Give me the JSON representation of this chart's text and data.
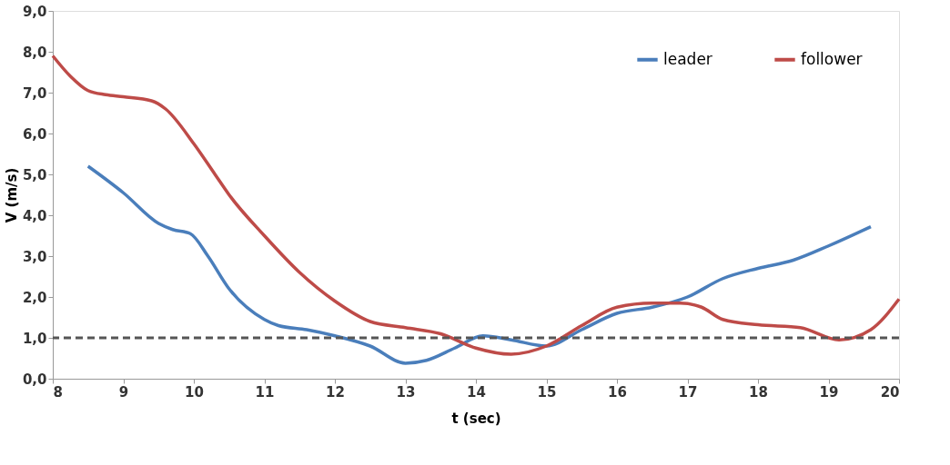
{
  "chart_data": {
    "type": "line",
    "xlabel": "t (sec)",
    "ylabel": "V (m/s)",
    "xlim": [
      8,
      20
    ],
    "xticks": [
      8,
      9,
      10,
      11,
      12,
      13,
      14,
      15,
      16,
      17,
      18,
      19,
      20
    ],
    "ylim": [
      0,
      9
    ],
    "yticks": [
      {
        "value": 0,
        "label": "0,0"
      },
      {
        "value": 1,
        "label": "1,0"
      },
      {
        "value": 2,
        "label": "2,0"
      },
      {
        "value": 3,
        "label": "3,0"
      },
      {
        "value": 4,
        "label": "4,0"
      },
      {
        "value": 5,
        "label": "5,0"
      },
      {
        "value": 6,
        "label": "6,0"
      },
      {
        "value": 7,
        "label": "7,0"
      },
      {
        "value": 8,
        "label": "8,0"
      },
      {
        "value": 9,
        "label": "9,0"
      }
    ],
    "grid": false,
    "legend": "top right",
    "line_style": "solid",
    "marker": "none",
    "series": [
      {
        "name": "leader",
        "color": "#4a7ebb",
        "x": [
          8.5,
          9,
          9.5,
          9.7,
          9.95,
          10.2,
          10.5,
          11,
          11.2,
          11.6,
          12,
          12.5,
          13,
          13.3,
          13.7,
          14.1,
          14.5,
          15,
          15.5,
          16,
          16.5,
          17,
          17.5,
          18,
          18.5,
          19,
          19.6
        ],
        "values": [
          5.2,
          4.55,
          3.8,
          3.65,
          3.55,
          3.0,
          2.2,
          1.45,
          1.3,
          1.2,
          1.05,
          0.8,
          0.38,
          0.45,
          0.75,
          1.05,
          0.95,
          0.8,
          1.2,
          1.6,
          1.75,
          2.0,
          2.45,
          2.7,
          2.9,
          3.25,
          3.72
        ]
      },
      {
        "name": "follower",
        "color": "#be4b48",
        "x": [
          8,
          8.25,
          8.5,
          8.75,
          9,
          9.4,
          9.6,
          10,
          10.3,
          10.5,
          11,
          11.5,
          12,
          12.5,
          13,
          13.5,
          14,
          14.5,
          15,
          15.5,
          16,
          16.5,
          16.9,
          17.2,
          17.5,
          18,
          18.6,
          19.15,
          19.6,
          20
        ],
        "values": [
          7.9,
          7.4,
          7.05,
          6.95,
          6.9,
          6.8,
          6.6,
          5.75,
          5.0,
          4.5,
          3.5,
          2.6,
          1.9,
          1.4,
          1.25,
          1.1,
          0.75,
          0.6,
          0.8,
          1.3,
          1.75,
          1.85,
          1.85,
          1.75,
          1.45,
          1.32,
          1.25,
          0.95,
          1.2,
          1.95
        ]
      }
    ],
    "ref_lines": [
      {
        "axis": "y",
        "value": 1,
        "label": null,
        "color": "#555555",
        "line_style": "dashed"
      }
    ]
  }
}
